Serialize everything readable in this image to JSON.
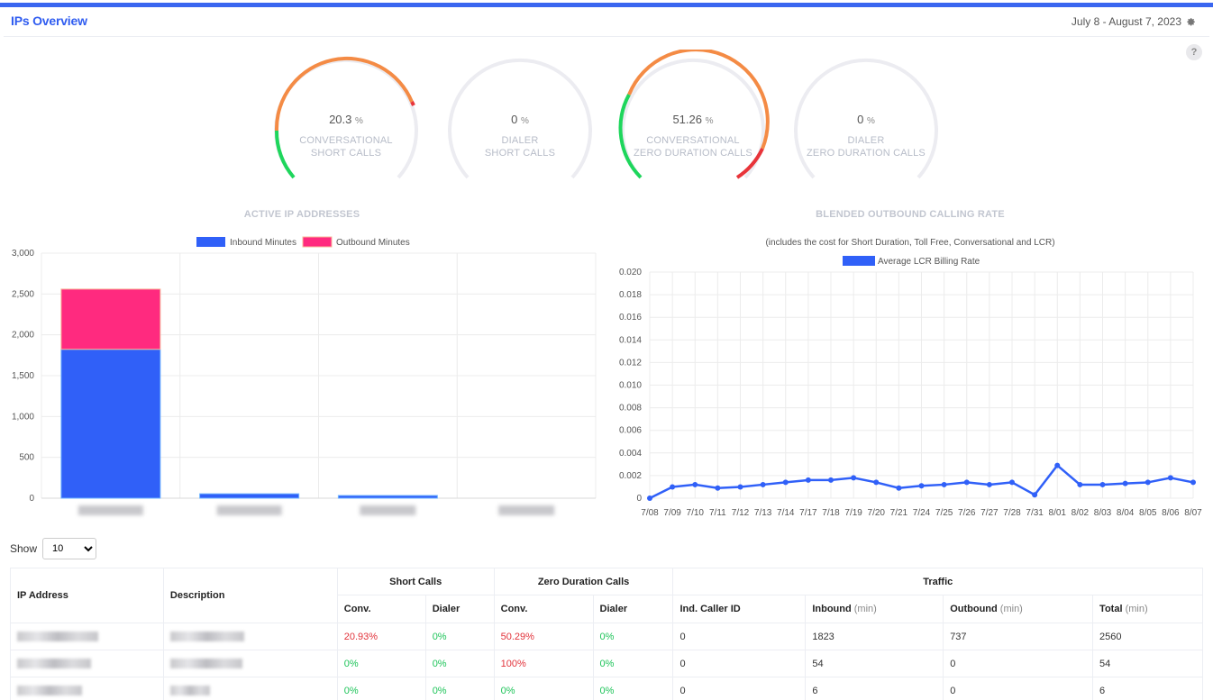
{
  "header": {
    "title": "IPs Overview",
    "date_range": "July 8 - August 7, 2023",
    "settings_icon": "gear-icon",
    "help_label": "?"
  },
  "colors": {
    "accent": "#2f5cf0",
    "inbound": "#3060f8",
    "outbound": "#ff2a7f",
    "line": "#3060f8",
    "gauge_orange": "#f48b45",
    "gauge_green": "#1ed65c",
    "gauge_red": "#e8343a"
  },
  "gauges": [
    {
      "value": "20.3",
      "unit": "%",
      "label_line1": "CONVERSATIONAL",
      "label_line2": "SHORT CALLS",
      "level": 0.203
    },
    {
      "value": "0",
      "unit": "%",
      "label_line1": "DIALER",
      "label_line2": "SHORT CALLS",
      "level": 0
    },
    {
      "value": "51.26",
      "unit": "%",
      "label_line1": "CONVERSATIONAL",
      "label_line2": "ZERO DURATION CALLS",
      "level": 0.5126
    },
    {
      "value": "0",
      "unit": "%",
      "label_line1": "DIALER",
      "label_line2": "ZERO DURATION CALLS",
      "level": 0
    }
  ],
  "chart_data": [
    {
      "type": "bar",
      "title": "ACTIVE IP ADDRESSES",
      "stacked": true,
      "categories": [
        "",
        "",
        "",
        ""
      ],
      "series": [
        {
          "name": "Inbound Minutes",
          "values": [
            1823,
            54,
            6,
            0
          ]
        },
        {
          "name": "Outbound Minutes",
          "values": [
            737,
            0,
            0,
            0
          ]
        }
      ],
      "ylim": [
        0,
        3000
      ],
      "yticks": [
        "0",
        "500",
        "1,000",
        "1,500",
        "2,000",
        "2,500",
        "3,000"
      ],
      "legend": "top",
      "grid": true
    },
    {
      "type": "line",
      "title": "BLENDED OUTBOUND CALLING RATE",
      "subtitle": "(includes the cost for Short Duration, Toll Free, Conversational and LCR)",
      "x": [
        "7/08",
        "7/09",
        "7/10",
        "7/11",
        "7/12",
        "7/13",
        "7/14",
        "7/17",
        "7/18",
        "7/19",
        "7/20",
        "7/21",
        "7/24",
        "7/25",
        "7/26",
        "7/27",
        "7/28",
        "7/31",
        "8/01",
        "8/02",
        "8/03",
        "8/04",
        "8/05",
        "8/06",
        "8/07"
      ],
      "series": [
        {
          "name": "Average LCR Billing Rate",
          "values": [
            0.0,
            0.001,
            0.0012,
            0.0009,
            0.001,
            0.0012,
            0.0014,
            0.0016,
            0.0016,
            0.0018,
            0.0014,
            0.0009,
            0.0011,
            0.0012,
            0.0014,
            0.0012,
            0.0014,
            0.0003,
            0.0029,
            0.0012,
            0.0012,
            0.0013,
            0.0014,
            0.0018,
            0.0014
          ]
        }
      ],
      "ylim": [
        0,
        0.02
      ],
      "yticks": [
        "0",
        "0.002",
        "0.004",
        "0.006",
        "0.008",
        "0.010",
        "0.012",
        "0.014",
        "0.016",
        "0.018",
        "0.020"
      ],
      "legend": "top",
      "grid": true
    }
  ],
  "show": {
    "label": "Show",
    "selected": "10"
  },
  "table": {
    "headers": {
      "ip": "IP Address",
      "desc": "Description",
      "short": "Short Calls",
      "zero": "Zero Duration Calls",
      "traffic": "Traffic",
      "conv": "Conv.",
      "dialer": "Dialer",
      "caller": "Ind. Caller ID",
      "inbound": "Inbound",
      "outbound": "Outbound",
      "total": "Total",
      "unit": "(min)"
    },
    "rows": [
      {
        "sc_conv": "20.93%",
        "sc_dialer": "0%",
        "zd_conv": "50.29%",
        "zd_dialer": "0%",
        "caller": "0",
        "inbound": "1823",
        "outbound": "737",
        "total": "2560"
      },
      {
        "sc_conv": "0%",
        "sc_dialer": "0%",
        "zd_conv": "100%",
        "zd_dialer": "0%",
        "caller": "0",
        "inbound": "54",
        "outbound": "0",
        "total": "54"
      },
      {
        "sc_conv": "0%",
        "sc_dialer": "0%",
        "zd_conv": "0%",
        "zd_dialer": "0%",
        "caller": "0",
        "inbound": "6",
        "outbound": "0",
        "total": "6"
      }
    ]
  }
}
